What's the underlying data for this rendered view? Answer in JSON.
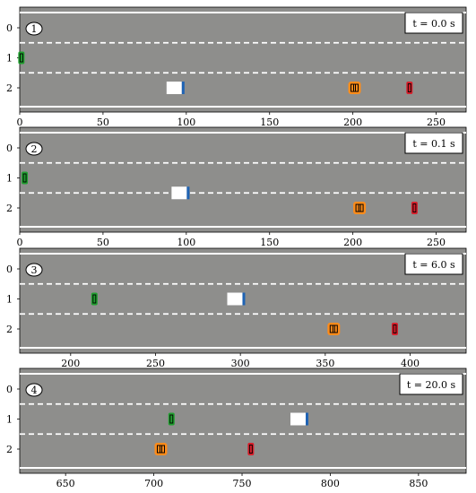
{
  "road": {
    "asphalt_color": "#8e8e8c",
    "line_color": "#ffffff",
    "lanes": [
      "0",
      "1",
      "2"
    ]
  },
  "vehicles": {
    "green": {
      "color": "#1f9e2e"
    },
    "truck": {
      "color": "#ffffff",
      "cab_color": "#1f63b4"
    },
    "orange": {
      "color": "#ff8c1a"
    },
    "red": {
      "color": "#d61e2a"
    }
  },
  "panels": [
    {
      "number": "1",
      "time_label": "t = 0.0 s",
      "xlim": [
        0,
        268
      ],
      "xticks": [
        0,
        50,
        100,
        150,
        200,
        250
      ],
      "tick_labels": [
        "0",
        "50",
        "100",
        "150",
        "200",
        "250"
      ],
      "cars": [
        {
          "id": "green",
          "x": 1,
          "lane": 1
        },
        {
          "id": "truck",
          "x": 93,
          "lane": 2
        },
        {
          "id": "orange",
          "x": 201,
          "lane": 2
        },
        {
          "id": "red",
          "x": 234,
          "lane": 2
        }
      ]
    },
    {
      "number": "2",
      "time_label": "t = 0.1 s",
      "xlim": [
        0,
        268
      ],
      "xticks": [
        0,
        50,
        100,
        150,
        200,
        250
      ],
      "tick_labels": [
        "0",
        "50",
        "100",
        "150",
        "200",
        "250"
      ],
      "cars": [
        {
          "id": "green",
          "x": 3,
          "lane": 1
        },
        {
          "id": "truck",
          "x": 96,
          "lane": 1.5
        },
        {
          "id": "orange",
          "x": 204,
          "lane": 2
        },
        {
          "id": "red",
          "x": 237,
          "lane": 2
        }
      ]
    },
    {
      "number": "3",
      "time_label": "t = 6.0 s",
      "xlim": [
        170,
        433
      ],
      "xticks": [
        200,
        250,
        300,
        350,
        400
      ],
      "tick_labels": [
        "200",
        "250",
        "300",
        "350",
        "400"
      ],
      "cars": [
        {
          "id": "green",
          "x": 214,
          "lane": 1
        },
        {
          "id": "truck",
          "x": 297,
          "lane": 1
        },
        {
          "id": "orange",
          "x": 355,
          "lane": 2
        },
        {
          "id": "red",
          "x": 391,
          "lane": 2
        }
      ]
    },
    {
      "number": "4",
      "time_label": "t = 20.0 s",
      "xlim": [
        624,
        877
      ],
      "xticks": [
        650,
        700,
        750,
        800,
        850
      ],
      "tick_labels": [
        "650",
        "700",
        "750",
        "800",
        "850"
      ],
      "cars": [
        {
          "id": "green",
          "x": 710,
          "lane": 1
        },
        {
          "id": "truck",
          "x": 782,
          "lane": 1
        },
        {
          "id": "orange",
          "x": 704,
          "lane": 2
        },
        {
          "id": "red",
          "x": 755,
          "lane": 2
        }
      ]
    }
  ]
}
